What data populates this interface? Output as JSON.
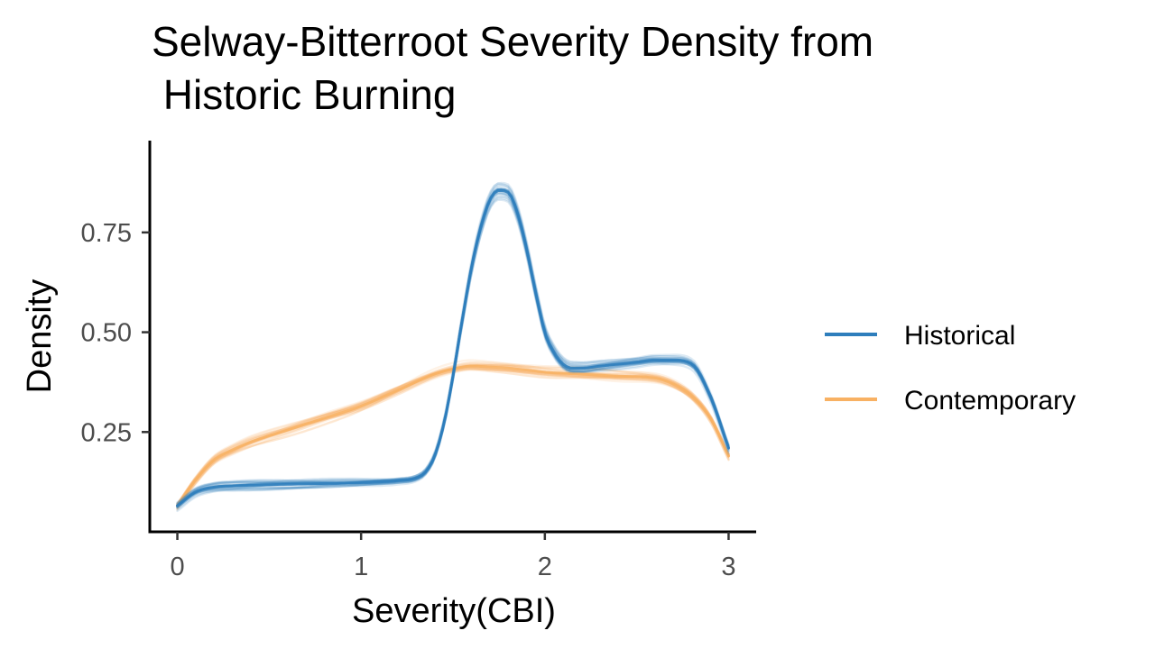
{
  "chart_data": {
    "type": "line",
    "title_lines": [
      "Selway-Bitterroot Severity Density from",
      " Historic Burning"
    ],
    "xlabel": "Severity(CBI)",
    "ylabel": "Density",
    "xlim": [
      -0.15,
      3.15
    ],
    "ylim": [
      0.0,
      0.98
    ],
    "x_ticks": [
      0,
      1,
      2,
      3
    ],
    "x_tick_labels": [
      "0",
      "1",
      "2",
      "3"
    ],
    "y_ticks": [
      0.25,
      0.5,
      0.75
    ],
    "y_tick_labels": [
      "0.25",
      "0.50",
      "0.75"
    ],
    "grid": false,
    "legend_position": "right",
    "series": [
      {
        "name": "Historical",
        "color": "#2e7ebc",
        "x": [
          0,
          0.1,
          0.2,
          0.3,
          0.5,
          0.7,
          0.9,
          1.1,
          1.2,
          1.3,
          1.35,
          1.4,
          1.45,
          1.5,
          1.55,
          1.6,
          1.65,
          1.7,
          1.75,
          1.8,
          1.85,
          1.9,
          1.95,
          2.0,
          2.05,
          2.1,
          2.15,
          2.2,
          2.3,
          2.4,
          2.5,
          2.6,
          2.7,
          2.8,
          2.9,
          3.0
        ],
        "y": [
          0.065,
          0.1,
          0.112,
          0.115,
          0.118,
          0.12,
          0.122,
          0.125,
          0.128,
          0.135,
          0.15,
          0.19,
          0.27,
          0.39,
          0.53,
          0.66,
          0.76,
          0.83,
          0.855,
          0.85,
          0.8,
          0.71,
          0.6,
          0.5,
          0.45,
          0.42,
          0.41,
          0.41,
          0.415,
          0.42,
          0.425,
          0.43,
          0.43,
          0.42,
          0.34,
          0.21
        ]
      },
      {
        "name": "Contemporary",
        "color": "#f8b163",
        "x": [
          0,
          0.1,
          0.2,
          0.3,
          0.4,
          0.6,
          0.8,
          1.0,
          1.2,
          1.4,
          1.5,
          1.6,
          1.7,
          1.8,
          1.9,
          2.0,
          2.2,
          2.4,
          2.6,
          2.7,
          2.8,
          2.9,
          3.0
        ],
        "y": [
          0.065,
          0.13,
          0.18,
          0.205,
          0.225,
          0.255,
          0.285,
          0.315,
          0.355,
          0.395,
          0.408,
          0.415,
          0.413,
          0.41,
          0.405,
          0.4,
          0.395,
          0.39,
          0.385,
          0.37,
          0.34,
          0.285,
          0.19
        ]
      }
    ]
  }
}
